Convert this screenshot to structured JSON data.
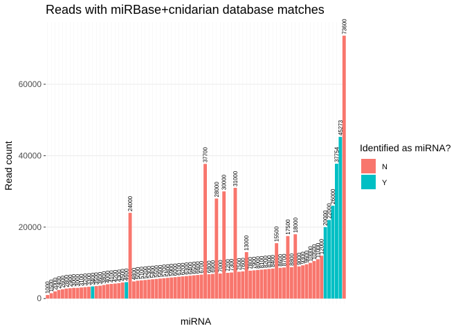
{
  "chart_data": {
    "type": "bar",
    "title": "Reads with miRBase+cnidarian database matches",
    "x_label": "miRNA",
    "y_label": "Read count",
    "values": [
      1000,
      1500,
      2000,
      2400,
      2600,
      2800,
      2900,
      3000,
      3000,
      3100,
      3200,
      3300,
      3400,
      3500,
      3600,
      3800,
      4000,
      4100,
      4200,
      4300,
      4500,
      4600,
      24000,
      4800,
      5000,
      5100,
      5200,
      5300,
      5400,
      5500,
      5600,
      5700,
      5800,
      5900,
      6000,
      6100,
      6200,
      6300,
      6400,
      6500,
      6600,
      6700,
      37700,
      6800,
      6900,
      28000,
      7000,
      30000,
      7200,
      7300,
      31000,
      7500,
      7600,
      13000,
      7800,
      7900,
      8000,
      8100,
      8200,
      8300,
      8400,
      15500,
      8600,
      8700,
      17500,
      8800,
      18000,
      9000,
      9300,
      9600,
      10000,
      10500,
      11000,
      12000,
      20000,
      22000,
      26000,
      37754,
      45273,
      73600
    ],
    "groups": [
      "N",
      "N",
      "N",
      "N",
      "N",
      "N",
      "N",
      "N",
      "N",
      "N",
      "N",
      "N",
      "Y",
      "N",
      "N",
      "N",
      "N",
      "N",
      "N",
      "N",
      "N",
      "Y",
      "N",
      "N",
      "N",
      "N",
      "N",
      "N",
      "N",
      "N",
      "N",
      "N",
      "N",
      "N",
      "N",
      "N",
      "N",
      "N",
      "N",
      "N",
      "N",
      "N",
      "N",
      "N",
      "N",
      "N",
      "N",
      "N",
      "N",
      "N",
      "N",
      "N",
      "N",
      "N",
      "N",
      "N",
      "N",
      "N",
      "N",
      "N",
      "N",
      "N",
      "N",
      "N",
      "N",
      "N",
      "N",
      "N",
      "N",
      "N",
      "N",
      "N",
      "N",
      "N",
      "Y",
      "Y",
      "Y",
      "Y",
      "Y",
      "N"
    ],
    "legend": {
      "title": "Identified as miRNA?",
      "entries": [
        {
          "name": "N",
          "color": "#F8766D"
        },
        {
          "name": "Y",
          "color": "#00BFC4"
        }
      ]
    },
    "ylim": [
      -1500,
      77400
    ],
    "yticks": [
      0,
      20000,
      40000,
      60000
    ],
    "grid": true
  }
}
